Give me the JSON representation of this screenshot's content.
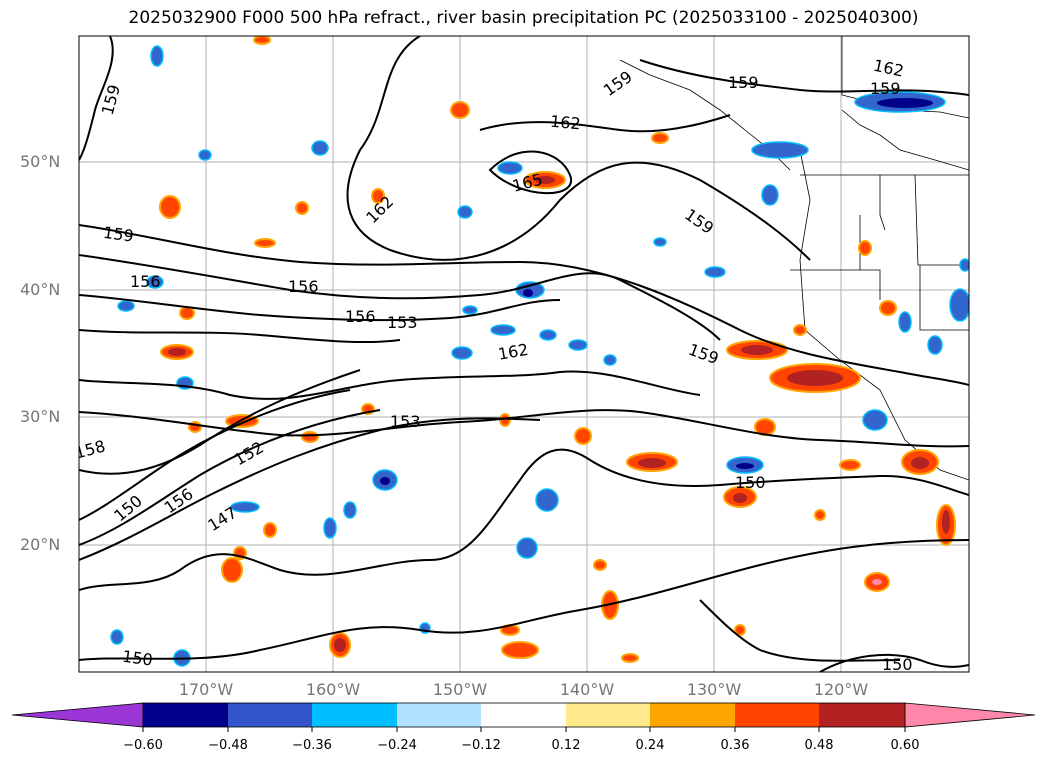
{
  "title": "2025032900 F000 500 hPa refract., river basin precipitation PC (2025033100 - 2025040300)",
  "lat_labels": [
    "50°N",
    "40°N",
    "30°N",
    "20°N"
  ],
  "lon_labels": [
    "170°W",
    "160°W",
    "150°W",
    "140°W",
    "130°W",
    "120°W"
  ],
  "contour_labels": [
    "159",
    "162",
    "159",
    "165",
    "162",
    "162",
    "159",
    "159",
    "159",
    "159",
    "156",
    "156",
    "156",
    "153",
    "162",
    "159",
    "153",
    "152",
    "150",
    "150",
    "147",
    "156",
    "150",
    "150",
    "158"
  ],
  "colorbar": {
    "ticks": [
      "−0.60",
      "−0.48",
      "−0.36",
      "−0.24",
      "−0.12",
      "0.12",
      "0.24",
      "0.36",
      "0.48",
      "0.60"
    ],
    "colors": [
      "#9a35d6",
      "#00008b",
      "#3355cc",
      "#00bfff",
      "#b0e2ff",
      "#ffffff",
      "#ffe98a",
      "#ffa500",
      "#ff4500",
      "#b22222",
      "#ff88aa"
    ]
  }
}
